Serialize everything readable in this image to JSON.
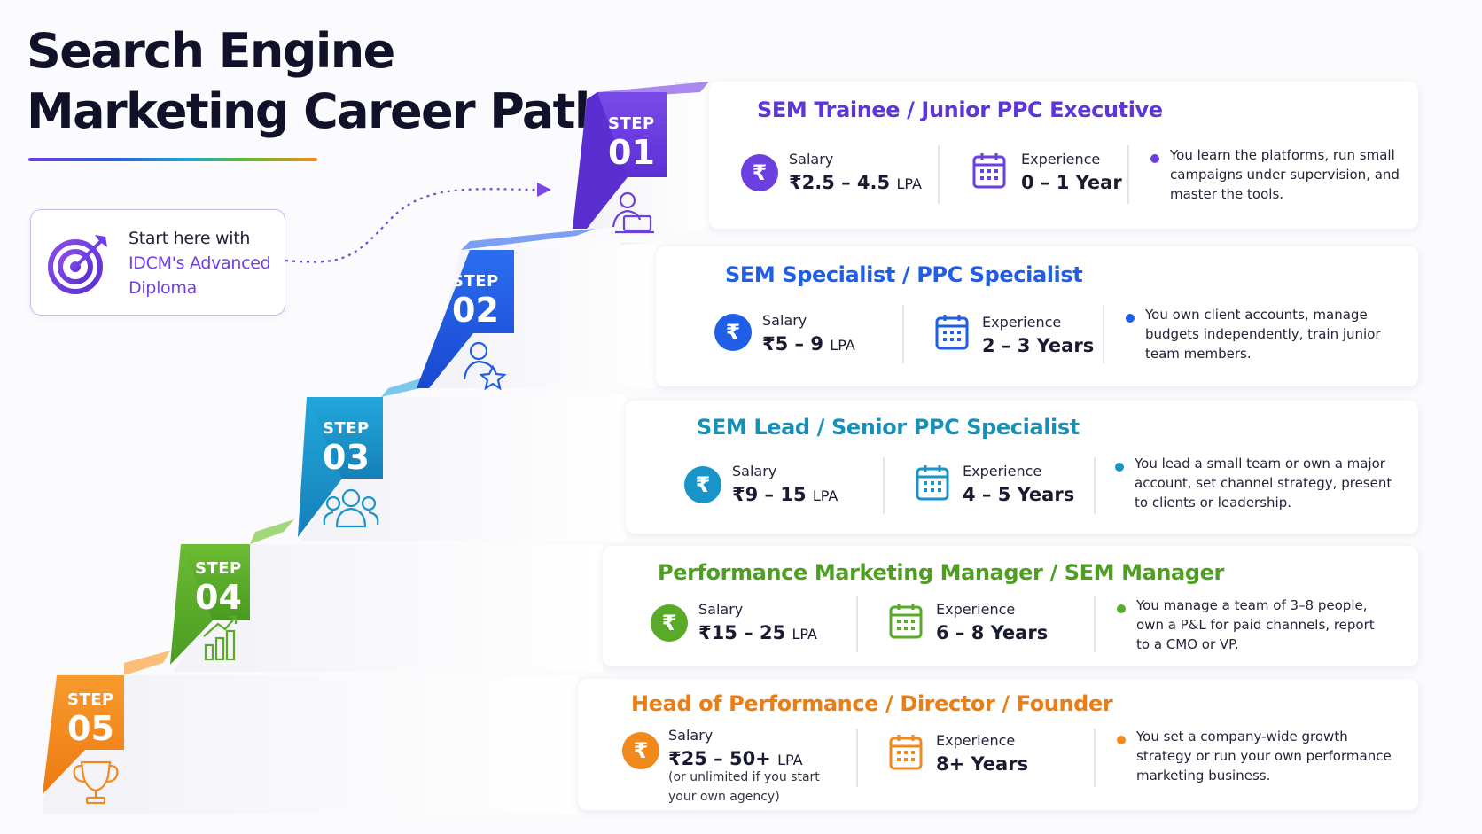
{
  "title_lines": [
    "Search Engine",
    "Marketing Career Path"
  ],
  "start": {
    "line1": "Start here with",
    "line2": "IDCM's Advanced",
    "line3": "Diploma"
  },
  "step_word": "STEP",
  "salary_label": "Salary",
  "experience_label": "Experience",
  "steps": [
    {
      "num": "01",
      "color": "#6b3fe0",
      "title": "SEM Trainee / Junior PPC Executive",
      "salary": "₹2.5 – 4.5",
      "salary_unit": "LPA",
      "experience": "0 – 1 Year",
      "desc": [
        "You learn the platforms, run small",
        "campaigns under supervision, and",
        "master the tools."
      ],
      "icon": "person-laptop-icon"
    },
    {
      "num": "02",
      "color": "#1f5ee6",
      "title": "SEM Specialist / PPC Specialist",
      "salary": "₹5 – 9",
      "salary_unit": "LPA",
      "experience": "2 – 3 Years",
      "desc": [
        "You own client accounts, manage",
        "budgets independently, train junior",
        "team members."
      ],
      "icon": "person-star-icon"
    },
    {
      "num": "03",
      "color": "#1894c8",
      "title": "SEM Lead / Senior PPC Specialist",
      "salary": "₹9 – 15",
      "salary_unit": "LPA",
      "experience": "4 – 5 Years",
      "desc": [
        "You lead a small team or own a major",
        "account, set channel strategy, present",
        "to clients or leadership."
      ],
      "icon": "team-icon"
    },
    {
      "num": "04",
      "color": "#5aaa2a",
      "title": "Performance Marketing Manager / SEM Manager",
      "salary": "₹15 – 25",
      "salary_unit": "LPA",
      "experience": "6 – 8 Years",
      "desc": [
        "You manage a team of 3–8 people,",
        "own a P&L for paid channels, report",
        "to a CMO or VP."
      ],
      "icon": "growth-chart-icon"
    },
    {
      "num": "05",
      "color": "#f08a1c",
      "title": "Head of Performance / Director / Founder",
      "salary": "₹25 – 50+",
      "salary_unit": "LPA",
      "salary_note": [
        "(or unlimited if you start",
        "your own agency)"
      ],
      "experience": "8+ Years",
      "desc": [
        "You set a company-wide growth",
        "strategy or run your own performance",
        "marketing business."
      ],
      "icon": "trophy-icon"
    }
  ],
  "colors": {
    "title": "#11112a",
    "start_highlight": "#7040e0",
    "start_border": "#c8b8f2"
  }
}
